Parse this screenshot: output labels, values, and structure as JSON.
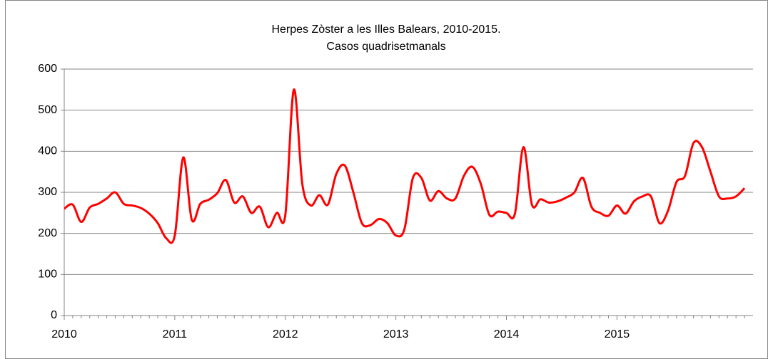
{
  "chart_data": {
    "type": "line",
    "title": "Herpes Zòster a les Illes Balears, 2010-2015.",
    "subtitle": "Casos quadrisetmanals",
    "categories": [
      "2010",
      null,
      null,
      null,
      null,
      null,
      null,
      null,
      null,
      null,
      null,
      null,
      null,
      "2011",
      null,
      null,
      null,
      null,
      null,
      null,
      null,
      null,
      null,
      null,
      null,
      null,
      "2012",
      null,
      null,
      null,
      null,
      null,
      null,
      null,
      null,
      null,
      null,
      null,
      null,
      "2013",
      null,
      null,
      null,
      null,
      null,
      null,
      null,
      null,
      null,
      null,
      null,
      null,
      "2014",
      null,
      null,
      null,
      null,
      null,
      null,
      null,
      null,
      null,
      null,
      null,
      null,
      "2015",
      null,
      null,
      null,
      null,
      null,
      null,
      null,
      null,
      null,
      null,
      null,
      null,
      null,
      null,
      null
    ],
    "series": [
      {
        "name": "Casos",
        "color": "#ff0000",
        "values": [
          260,
          270,
          228,
          263,
          272,
          285,
          300,
          272,
          268,
          262,
          248,
          225,
          188,
          195,
          385,
          233,
          272,
          282,
          298,
          330,
          275,
          290,
          250,
          265,
          215,
          250,
          245,
          550,
          320,
          268,
          293,
          270,
          345,
          365,
          300,
          225,
          220,
          235,
          225,
          195,
          210,
          335,
          335,
          280,
          303,
          285,
          285,
          340,
          362,
          320,
          245,
          253,
          250,
          248,
          410,
          270,
          283,
          275,
          278,
          287,
          300,
          335,
          265,
          250,
          243,
          268,
          248,
          278,
          290,
          290,
          225,
          255,
          325,
          340,
          420,
          410,
          350,
          290,
          285,
          290,
          310
        ]
      }
    ],
    "ylim": [
      0,
      600
    ],
    "yticks": [
      0,
      100,
      200,
      300,
      400,
      500,
      600
    ],
    "grid": true
  }
}
